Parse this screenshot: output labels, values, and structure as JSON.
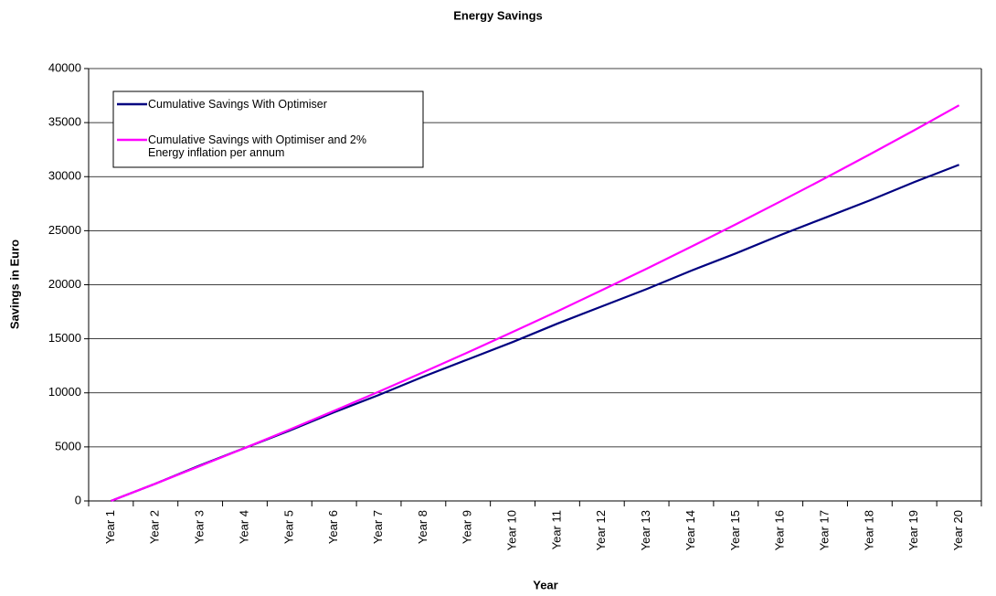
{
  "chart_data": {
    "type": "line",
    "title": "Energy Savings",
    "x_label": "Year",
    "y_label": "Savings in Euro",
    "categories": [
      "Year 1",
      "Year 2",
      "Year 3",
      "Year 4",
      "Year 5",
      "Year 6",
      "Year 7",
      "Year 8",
      "Year 9",
      "Year 10",
      "Year 11",
      "Year 12",
      "Year 13",
      "Year 14",
      "Year 15",
      "Year 16",
      "Year 17",
      "Year 18",
      "Year 19",
      "Year 20"
    ],
    "series": [
      {
        "name": "Cumulative Savings With Optimiser",
        "color": "#000080",
        "values": [
          0,
          1600,
          3300,
          4900,
          6500,
          8200,
          9800,
          11500,
          13100,
          14700,
          16400,
          18000,
          19600,
          21300,
          22900,
          24600,
          26200,
          27800,
          29500,
          31100
        ]
      },
      {
        "name": "Cumulative Savings with Optimiser and 2% Energy inflation per annum",
        "color": "#ff00ff",
        "values": [
          0,
          1600,
          3240,
          4900,
          6600,
          8340,
          10110,
          11910,
          13750,
          15630,
          17540,
          19500,
          21480,
          23520,
          25590,
          27710,
          29860,
          32060,
          34300,
          36600
        ]
      }
    ],
    "ylim": [
      0,
      40000
    ],
    "yticks": [
      0,
      5000,
      10000,
      15000,
      20000,
      25000,
      30000,
      35000,
      40000
    ],
    "grid": true,
    "legend": "upper left"
  }
}
